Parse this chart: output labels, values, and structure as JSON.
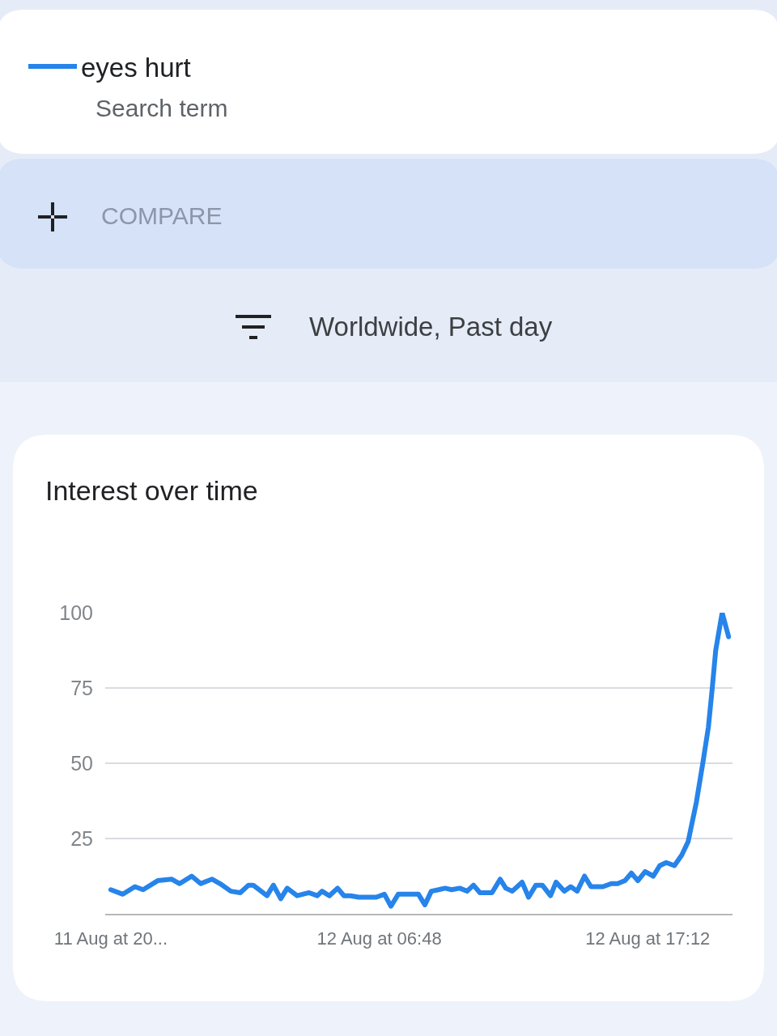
{
  "chart_data": {
    "type": "line",
    "title": "Interest over time",
    "annotations": [
      "Search term",
      "COMPARE",
      "Worldwide, Past day"
    ],
    "x": [
      "--08-11T20:24",
      "--08-11T20:52",
      "--08-11T21:20",
      "--08-11T21:39",
      "--08-11T22:13",
      "--08-11T22:45",
      "--08-11T23:04",
      "--08-11T23:32",
      "--08-11T23:53",
      "--08-12T00:19",
      "--08-12T00:38",
      "--08-12T01:03",
      "--08-12T01:25",
      "--08-12T01:44",
      "--08-12T01:55",
      "--08-12T02:27",
      "--08-12T02:42",
      "--08-12T02:59",
      "--08-12T03:14",
      "--08-12T03:37",
      "--08-12T04:05",
      "--08-12T04:24",
      "--08-12T04:35",
      "--08-12T04:52",
      "--08-12T05:11",
      "--08-12T05:26",
      "--08-12T05:41",
      "--08-12T06:00",
      "--08-12T06:41",
      "--08-12T07:00",
      "--08-12T07:15",
      "--08-12T07:32",
      "--08-12T08:19",
      "--08-12T08:34",
      "--08-12T08:49",
      "--08-12T09:06",
      "--08-12T09:21",
      "--08-12T09:36",
      "--08-12T09:55",
      "--08-12T10:12",
      "--08-12T10:27",
      "--08-12T10:42",
      "--08-12T11:10",
      "--08-12T11:29",
      "--08-12T11:42",
      "--08-12T11:57",
      "--08-12T12:20",
      "--08-12T12:35",
      "--08-12T12:52",
      "--08-12T13:07",
      "--08-12T13:26",
      "--08-12T13:39",
      "--08-12T13:58",
      "--08-12T14:13",
      "--08-12T14:28",
      "--08-12T14:45",
      "--08-12T15:00",
      "--08-12T15:28",
      "--08-12T15:47",
      "--08-12T16:02",
      "--08-12T16:19",
      "--08-12T16:34",
      "--08-12T16:49",
      "--08-12T17:06",
      "--08-12T17:25",
      "--08-12T17:40",
      "--08-12T17:55",
      "--08-12T18:14",
      "--08-12T18:31",
      "--08-12T18:46",
      "--08-12T19:05",
      "--08-12T19:20",
      "--08-12T19:33",
      "--08-12T19:42",
      "--08-12T19:50",
      "--08-12T20:05",
      "--08-12T20:20"
    ],
    "series": [
      {
        "name": "eyes hurt",
        "color": "#2684ea",
        "values": [
          8,
          6.5,
          9,
          8,
          11,
          11.5,
          10,
          12.5,
          10,
          11.5,
          10,
          7.5,
          7,
          9.5,
          9.5,
          6,
          9.5,
          5,
          8.5,
          6,
          7,
          6,
          7.5,
          6,
          8.5,
          6,
          6,
          5.5,
          5.5,
          6.5,
          2.5,
          6.5,
          6.5,
          3,
          7.5,
          8,
          8.5,
          8,
          8.5,
          7.5,
          9.5,
          7,
          7,
          11.5,
          8.5,
          7.5,
          10.5,
          5.5,
          9.5,
          9.5,
          6,
          10.5,
          7.5,
          9,
          7.5,
          12.5,
          9,
          9,
          10,
          10,
          11,
          13.5,
          11,
          14,
          12.5,
          16,
          17,
          16,
          19.5,
          24,
          37,
          50,
          62,
          75,
          87.5,
          100,
          92
        ]
      }
    ],
    "xlim": [
      "--08-11T20:11",
      "--08-12T20:29"
    ],
    "xticks": [
      {
        "value": "--08-11T20:24",
        "label": "11 Aug at 20..."
      },
      {
        "value": "--08-12T06:48",
        "label": "12 Aug at 06:48"
      },
      {
        "value": "--08-12T17:12",
        "label": "12 Aug at 17:12"
      }
    ],
    "ylim": [
      0,
      100
    ],
    "yticks": [
      {
        "value": 0,
        "label": null
      },
      25,
      50,
      75,
      100
    ],
    "grid": "y",
    "legend": "top left"
  }
}
